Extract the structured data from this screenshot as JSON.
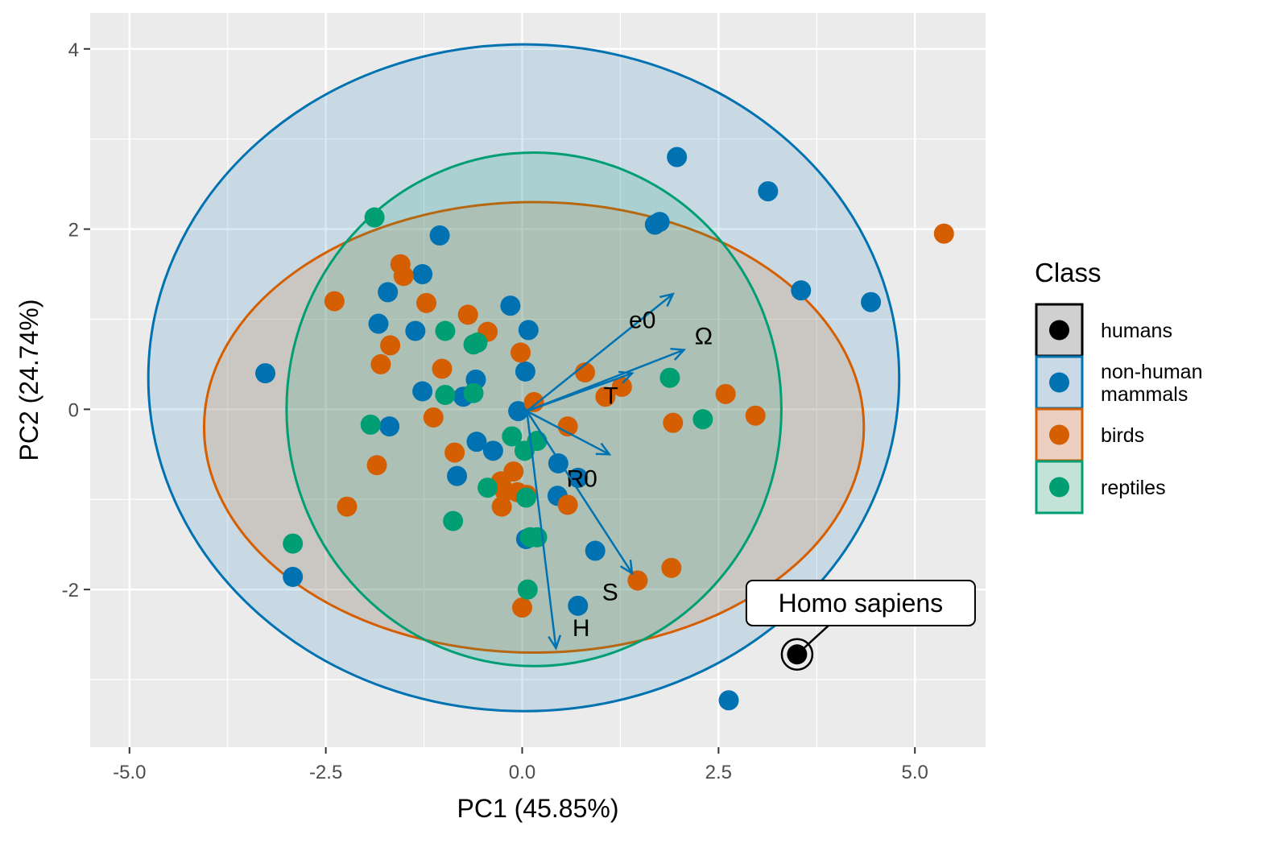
{
  "chart_data": {
    "type": "scatter",
    "subtype": "pca-biplot",
    "xlabel": "PC1 (45.85%)",
    "ylabel": "PC2 (24.74%)",
    "xlim": [
      -5.5,
      5.9
    ],
    "ylim": [
      -3.75,
      4.4
    ],
    "x_ticks": [
      -5.0,
      -2.5,
      0.0,
      2.5,
      5.0
    ],
    "x_tick_labels": [
      "-5.0",
      "-2.5",
      "0.0",
      "2.5",
      "5.0"
    ],
    "y_ticks": [
      -2,
      0,
      2,
      4
    ],
    "y_tick_labels": [
      "-2",
      "0",
      "2",
      "4"
    ],
    "grid": true,
    "legend": {
      "title": "Class",
      "position": "right",
      "entries": [
        {
          "key": "humans",
          "label": "humans",
          "label_lines": [
            "humans"
          ],
          "color": "#000000",
          "fill": "#d0d0d0"
        },
        {
          "key": "mammals",
          "label": "non-human mammals",
          "label_lines": [
            "non-human",
            " mammals"
          ],
          "color": "#0072B2",
          "fill": "#c9d9e6"
        },
        {
          "key": "birds",
          "label": "birds",
          "label_lines": [
            "birds"
          ],
          "color": "#D55E00",
          "fill": "#edcfc0"
        },
        {
          "key": "reptiles",
          "label": "reptiles",
          "label_lines": [
            "reptiles"
          ],
          "color": "#009E73",
          "fill": "#c4e3d8"
        }
      ]
    },
    "ellipses": [
      {
        "class": "mammals",
        "center": [
          0.02,
          0.35
        ],
        "rx": 4.78,
        "ry": 3.7,
        "color": "#0072B2"
      },
      {
        "class": "birds",
        "center": [
          0.15,
          -0.2
        ],
        "rx": 4.2,
        "ry": 2.5,
        "color": "#D55E00"
      },
      {
        "class": "reptiles",
        "center": [
          0.15,
          0.0
        ],
        "rx": 3.15,
        "ry": 2.85,
        "color": "#009E73"
      }
    ],
    "series": [
      {
        "name": "non-human mammals",
        "class": "mammals",
        "color": "#0072B2",
        "points": [
          [
            1.97,
            2.8
          ],
          [
            3.13,
            2.42
          ],
          [
            1.69,
            2.05
          ],
          [
            1.75,
            2.08
          ],
          [
            3.55,
            1.32
          ],
          [
            4.44,
            1.19
          ],
          [
            -1.05,
            1.93
          ],
          [
            -1.27,
            1.5
          ],
          [
            -1.71,
            1.3
          ],
          [
            -1.83,
            0.95
          ],
          [
            -1.36,
            0.87
          ],
          [
            -0.15,
            1.15
          ],
          [
            0.08,
            0.88
          ],
          [
            0.04,
            0.42
          ],
          [
            -0.59,
            0.33
          ],
          [
            -1.27,
            0.2
          ],
          [
            -0.75,
            0.14
          ],
          [
            -0.05,
            -0.02
          ],
          [
            -3.27,
            0.4
          ],
          [
            -1.69,
            -0.19
          ],
          [
            -0.58,
            -0.36
          ],
          [
            -0.37,
            -0.46
          ],
          [
            -0.83,
            -0.74
          ],
          [
            0.05,
            -1.44
          ],
          [
            0.46,
            -0.6
          ],
          [
            0.45,
            -0.96
          ],
          [
            0.71,
            -0.76
          ],
          [
            0.93,
            -1.57
          ],
          [
            0.71,
            -2.18
          ],
          [
            -2.92,
            -1.86
          ],
          [
            2.63,
            -3.23
          ]
        ]
      },
      {
        "name": "birds",
        "class": "birds",
        "color": "#D55E00",
        "points": [
          [
            5.37,
            1.95
          ],
          [
            -2.39,
            1.2
          ],
          [
            -1.55,
            1.61
          ],
          [
            -1.51,
            1.48
          ],
          [
            -1.22,
            1.18
          ],
          [
            -0.69,
            1.05
          ],
          [
            -1.68,
            0.71
          ],
          [
            -0.44,
            0.86
          ],
          [
            -0.02,
            0.63
          ],
          [
            -1.8,
            0.5
          ],
          [
            -1.02,
            0.45
          ],
          [
            0.8,
            0.41
          ],
          [
            1.06,
            0.14
          ],
          [
            1.27,
            0.25
          ],
          [
            0.15,
            0.08
          ],
          [
            2.59,
            0.17
          ],
          [
            2.97,
            -0.07
          ],
          [
            1.92,
            -0.15
          ],
          [
            -1.13,
            -0.09
          ],
          [
            0.58,
            -0.19
          ],
          [
            -0.86,
            -0.48
          ],
          [
            -1.85,
            -0.62
          ],
          [
            -0.11,
            -0.69
          ],
          [
            -0.27,
            -0.8
          ],
          [
            -0.22,
            -0.91
          ],
          [
            -0.06,
            -0.92
          ],
          [
            0.06,
            -0.95
          ],
          [
            -2.23,
            -1.08
          ],
          [
            -0.26,
            -1.08
          ],
          [
            0.58,
            -1.06
          ],
          [
            1.47,
            -1.9
          ],
          [
            1.9,
            -1.76
          ],
          [
            0.0,
            -2.2
          ]
        ]
      },
      {
        "name": "reptiles",
        "class": "reptiles",
        "color": "#009E73",
        "points": [
          [
            -1.88,
            2.13
          ],
          [
            -0.98,
            0.87
          ],
          [
            -0.62,
            0.72
          ],
          [
            -0.57,
            0.74
          ],
          [
            1.88,
            0.35
          ],
          [
            -0.98,
            0.16
          ],
          [
            -0.62,
            0.18
          ],
          [
            -1.93,
            -0.17
          ],
          [
            2.3,
            -0.11
          ],
          [
            -0.13,
            -0.3
          ],
          [
            0.03,
            -0.46
          ],
          [
            0.19,
            -0.35
          ],
          [
            -0.44,
            -0.87
          ],
          [
            0.05,
            -0.98
          ],
          [
            0.1,
            -1.42
          ],
          [
            0.19,
            -1.42
          ],
          [
            -0.88,
            -1.24
          ],
          [
            -2.92,
            -1.49
          ],
          [
            0.07,
            -2.0
          ]
        ]
      },
      {
        "name": "humans",
        "class": "humans",
        "color": "#000000",
        "points": [
          [
            3.5,
            -2.72
          ]
        ]
      }
    ],
    "loadings": [
      {
        "label": "e0",
        "x": 1.92,
        "y": 1.28,
        "label_x": 1.53,
        "label_y": 1.0
      },
      {
        "label": "Ω",
        "x": 2.06,
        "y": 0.66,
        "label_x": 2.31,
        "label_y": 0.82
      },
      {
        "label": "T",
        "x": 1.4,
        "y": 0.4,
        "label_x": 1.13,
        "label_y": 0.16
      },
      {
        "label": "R0",
        "x": 1.11,
        "y": -0.5,
        "label_x": 0.76,
        "label_y": -0.76
      },
      {
        "label": "S",
        "x": 1.4,
        "y": -1.82,
        "label_x": 1.12,
        "label_y": -2.02
      },
      {
        "label": "H",
        "x": 0.43,
        "y": -2.65,
        "label_x": 0.75,
        "label_y": -2.42
      }
    ],
    "loading_origin": [
      0.06,
      -0.02
    ],
    "loading_color": "#0072B2",
    "annotations": [
      {
        "text": "Homo sapiens",
        "point": [
          3.5,
          -2.72
        ],
        "label_at": [
          4.31,
          -2.15
        ]
      }
    ]
  }
}
